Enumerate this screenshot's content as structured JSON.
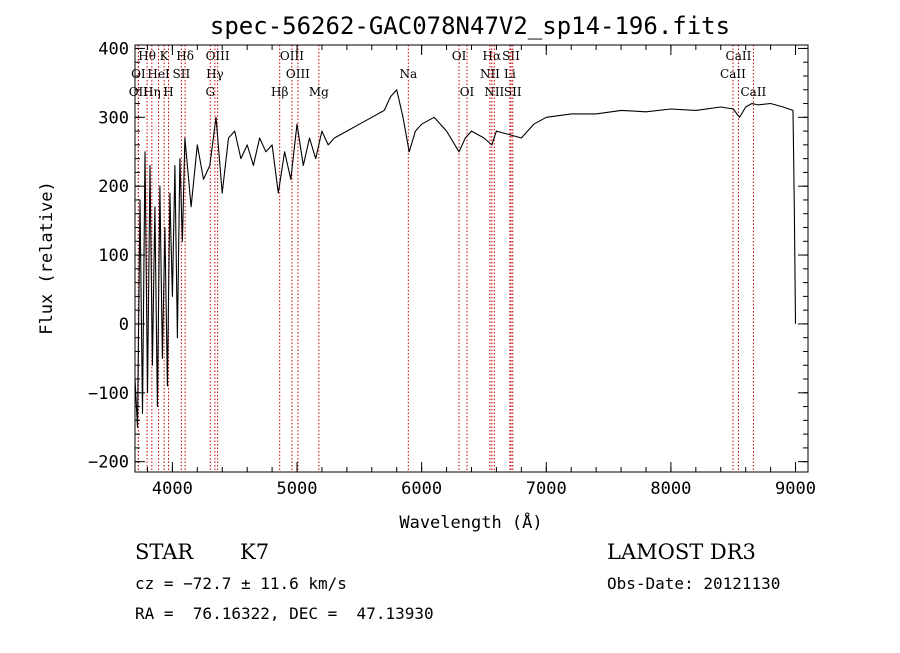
{
  "chart_data": {
    "type": "line",
    "title": "spec-56262-GAC078N47V2_sp14-196.fits",
    "xlabel": "Wavelength (Å)",
    "ylabel": "Flux (relative)",
    "xlim": [
      3700,
      9100
    ],
    "ylim": [
      -215,
      405
    ],
    "xticks": [
      4000,
      5000,
      6000,
      7000,
      8000,
      9000
    ],
    "yticks": [
      -200,
      -100,
      0,
      100,
      200,
      300,
      400
    ],
    "tick_labels_x": [
      "4000",
      "5000",
      "6000",
      "7000",
      "8000",
      "9000"
    ],
    "tick_labels_y": [
      "−200",
      "−100",
      "0",
      "100",
      "200",
      "300",
      "400"
    ],
    "series": [
      {
        "name": "flux",
        "color": "#000000",
        "x": [
          3700,
          3720,
          3740,
          3760,
          3780,
          3800,
          3820,
          3840,
          3860,
          3880,
          3900,
          3920,
          3940,
          3960,
          3980,
          4000,
          4020,
          4040,
          4060,
          4080,
          4100,
          4150,
          4200,
          4250,
          4300,
          4350,
          4400,
          4450,
          4500,
          4550,
          4600,
          4650,
          4700,
          4750,
          4800,
          4850,
          4900,
          4950,
          5000,
          5050,
          5100,
          5150,
          5200,
          5250,
          5300,
          5400,
          5500,
          5600,
          5700,
          5750,
          5800,
          5850,
          5900,
          5950,
          6000,
          6100,
          6200,
          6300,
          6350,
          6400,
          6500,
          6563,
          6600,
          6700,
          6800,
          6900,
          7000,
          7200,
          7400,
          7600,
          7800,
          8000,
          8200,
          8400,
          8500,
          8550,
          8600,
          8650,
          8700,
          8800,
          8900,
          8980,
          8990,
          9000
        ],
        "values": [
          -80,
          -150,
          180,
          -130,
          250,
          -100,
          230,
          -60,
          170,
          -120,
          200,
          -50,
          140,
          -90,
          190,
          40,
          230,
          -20,
          240,
          120,
          270,
          170,
          260,
          210,
          230,
          300,
          190,
          270,
          280,
          240,
          260,
          230,
          270,
          250,
          260,
          190,
          250,
          210,
          290,
          230,
          270,
          240,
          280,
          260,
          270,
          280,
          290,
          300,
          310,
          330,
          340,
          300,
          250,
          280,
          290,
          300,
          280,
          250,
          270,
          280,
          270,
          260,
          280,
          275,
          270,
          290,
          300,
          305,
          305,
          310,
          308,
          312,
          310,
          315,
          312,
          300,
          315,
          320,
          318,
          320,
          315,
          310,
          170,
          0
        ]
      }
    ],
    "spectral_lines": [
      {
        "name": "Hθ",
        "wavelength": 3797,
        "row": 0
      },
      {
        "name": "K",
        "wavelength": 3934,
        "row": 0
      },
      {
        "name": "Hδ",
        "wavelength": 4102,
        "row": 0
      },
      {
        "name": "OIII",
        "wavelength": 4363,
        "row": 0
      },
      {
        "name": "OIII",
        "wavelength": 4959,
        "row": 0
      },
      {
        "name": "OI",
        "wavelength": 6300,
        "row": 0
      },
      {
        "name": "Hα",
        "wavelength": 6563,
        "row": 0
      },
      {
        "name": "SII",
        "wavelength": 6717,
        "row": 0
      },
      {
        "name": "CaII",
        "wavelength": 8542,
        "row": 0
      },
      {
        "name": "OI",
        "wavelength": 3727,
        "row": 1
      },
      {
        "name": "HeI",
        "wavelength": 3889,
        "row": 1
      },
      {
        "name": "SII",
        "wavelength": 4072,
        "row": 1
      },
      {
        "name": "Hγ",
        "wavelength": 4341,
        "row": 1
      },
      {
        "name": "OIII",
        "wavelength": 5007,
        "row": 1
      },
      {
        "name": "Na",
        "wavelength": 5893,
        "row": 1
      },
      {
        "name": "NII",
        "wavelength": 6548,
        "row": 1
      },
      {
        "name": "Li",
        "wavelength": 6708,
        "row": 1
      },
      {
        "name": "CaII",
        "wavelength": 8498,
        "row": 1
      },
      {
        "name": "OII",
        "wavelength": 3727,
        "row": 2
      },
      {
        "name": "Hη",
        "wavelength": 3835,
        "row": 2
      },
      {
        "name": "H",
        "wavelength": 3969,
        "row": 2
      },
      {
        "name": "G",
        "wavelength": 4304,
        "row": 2
      },
      {
        "name": "Hβ",
        "wavelength": 4861,
        "row": 2
      },
      {
        "name": "Mg",
        "wavelength": 5175,
        "row": 2
      },
      {
        "name": "OI",
        "wavelength": 6364,
        "row": 2
      },
      {
        "name": "NII",
        "wavelength": 6583,
        "row": 2
      },
      {
        "name": "SII",
        "wavelength": 6731,
        "row": 2
      },
      {
        "name": "CaII",
        "wavelength": 8662,
        "row": 2
      }
    ],
    "line_color": "#cc0000"
  },
  "info": {
    "object_class": "STAR",
    "subclass": "K7",
    "survey": "LAMOST DR3",
    "redshift_text": "cz = −72.7 ± 11.6 km/s",
    "obs_date_text": "Obs-Date: 20121130",
    "coords_text": "RA =  76.16322, DEC =  47.13930"
  }
}
